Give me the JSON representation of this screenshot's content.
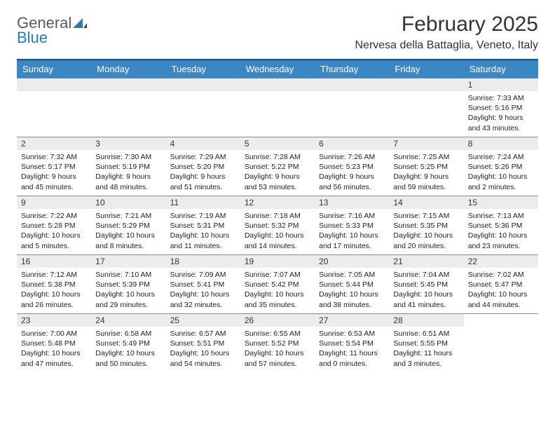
{
  "logo": {
    "general": "General",
    "blue": "Blue"
  },
  "title": "February 2025",
  "location": "Nervesa della Battaglia, Veneto, Italy",
  "colors": {
    "header_bg": "#3b86c5",
    "header_border_top": "#1f4e79",
    "daynum_bg": "#ececec",
    "cell_border": "#888888",
    "text": "#222222",
    "logo_gray": "#5a5a5a",
    "logo_blue": "#2a7ab9"
  },
  "weekdays": [
    "Sunday",
    "Monday",
    "Tuesday",
    "Wednesday",
    "Thursday",
    "Friday",
    "Saturday"
  ],
  "weeks": [
    [
      null,
      null,
      null,
      null,
      null,
      null,
      {
        "n": "1",
        "sr": "Sunrise: 7:33 AM",
        "ss": "Sunset: 5:16 PM",
        "dl1": "Daylight: 9 hours",
        "dl2": "and 43 minutes."
      }
    ],
    [
      {
        "n": "2",
        "sr": "Sunrise: 7:32 AM",
        "ss": "Sunset: 5:17 PM",
        "dl1": "Daylight: 9 hours",
        "dl2": "and 45 minutes."
      },
      {
        "n": "3",
        "sr": "Sunrise: 7:30 AM",
        "ss": "Sunset: 5:19 PM",
        "dl1": "Daylight: 9 hours",
        "dl2": "and 48 minutes."
      },
      {
        "n": "4",
        "sr": "Sunrise: 7:29 AM",
        "ss": "Sunset: 5:20 PM",
        "dl1": "Daylight: 9 hours",
        "dl2": "and 51 minutes."
      },
      {
        "n": "5",
        "sr": "Sunrise: 7:28 AM",
        "ss": "Sunset: 5:22 PM",
        "dl1": "Daylight: 9 hours",
        "dl2": "and 53 minutes."
      },
      {
        "n": "6",
        "sr": "Sunrise: 7:26 AM",
        "ss": "Sunset: 5:23 PM",
        "dl1": "Daylight: 9 hours",
        "dl2": "and 56 minutes."
      },
      {
        "n": "7",
        "sr": "Sunrise: 7:25 AM",
        "ss": "Sunset: 5:25 PM",
        "dl1": "Daylight: 9 hours",
        "dl2": "and 59 minutes."
      },
      {
        "n": "8",
        "sr": "Sunrise: 7:24 AM",
        "ss": "Sunset: 5:26 PM",
        "dl1": "Daylight: 10 hours",
        "dl2": "and 2 minutes."
      }
    ],
    [
      {
        "n": "9",
        "sr": "Sunrise: 7:22 AM",
        "ss": "Sunset: 5:28 PM",
        "dl1": "Daylight: 10 hours",
        "dl2": "and 5 minutes."
      },
      {
        "n": "10",
        "sr": "Sunrise: 7:21 AM",
        "ss": "Sunset: 5:29 PM",
        "dl1": "Daylight: 10 hours",
        "dl2": "and 8 minutes."
      },
      {
        "n": "11",
        "sr": "Sunrise: 7:19 AM",
        "ss": "Sunset: 5:31 PM",
        "dl1": "Daylight: 10 hours",
        "dl2": "and 11 minutes."
      },
      {
        "n": "12",
        "sr": "Sunrise: 7:18 AM",
        "ss": "Sunset: 5:32 PM",
        "dl1": "Daylight: 10 hours",
        "dl2": "and 14 minutes."
      },
      {
        "n": "13",
        "sr": "Sunrise: 7:16 AM",
        "ss": "Sunset: 5:33 PM",
        "dl1": "Daylight: 10 hours",
        "dl2": "and 17 minutes."
      },
      {
        "n": "14",
        "sr": "Sunrise: 7:15 AM",
        "ss": "Sunset: 5:35 PM",
        "dl1": "Daylight: 10 hours",
        "dl2": "and 20 minutes."
      },
      {
        "n": "15",
        "sr": "Sunrise: 7:13 AM",
        "ss": "Sunset: 5:36 PM",
        "dl1": "Daylight: 10 hours",
        "dl2": "and 23 minutes."
      }
    ],
    [
      {
        "n": "16",
        "sr": "Sunrise: 7:12 AM",
        "ss": "Sunset: 5:38 PM",
        "dl1": "Daylight: 10 hours",
        "dl2": "and 26 minutes."
      },
      {
        "n": "17",
        "sr": "Sunrise: 7:10 AM",
        "ss": "Sunset: 5:39 PM",
        "dl1": "Daylight: 10 hours",
        "dl2": "and 29 minutes."
      },
      {
        "n": "18",
        "sr": "Sunrise: 7:09 AM",
        "ss": "Sunset: 5:41 PM",
        "dl1": "Daylight: 10 hours",
        "dl2": "and 32 minutes."
      },
      {
        "n": "19",
        "sr": "Sunrise: 7:07 AM",
        "ss": "Sunset: 5:42 PM",
        "dl1": "Daylight: 10 hours",
        "dl2": "and 35 minutes."
      },
      {
        "n": "20",
        "sr": "Sunrise: 7:05 AM",
        "ss": "Sunset: 5:44 PM",
        "dl1": "Daylight: 10 hours",
        "dl2": "and 38 minutes."
      },
      {
        "n": "21",
        "sr": "Sunrise: 7:04 AM",
        "ss": "Sunset: 5:45 PM",
        "dl1": "Daylight: 10 hours",
        "dl2": "and 41 minutes."
      },
      {
        "n": "22",
        "sr": "Sunrise: 7:02 AM",
        "ss": "Sunset: 5:47 PM",
        "dl1": "Daylight: 10 hours",
        "dl2": "and 44 minutes."
      }
    ],
    [
      {
        "n": "23",
        "sr": "Sunrise: 7:00 AM",
        "ss": "Sunset: 5:48 PM",
        "dl1": "Daylight: 10 hours",
        "dl2": "and 47 minutes."
      },
      {
        "n": "24",
        "sr": "Sunrise: 6:58 AM",
        "ss": "Sunset: 5:49 PM",
        "dl1": "Daylight: 10 hours",
        "dl2": "and 50 minutes."
      },
      {
        "n": "25",
        "sr": "Sunrise: 6:57 AM",
        "ss": "Sunset: 5:51 PM",
        "dl1": "Daylight: 10 hours",
        "dl2": "and 54 minutes."
      },
      {
        "n": "26",
        "sr": "Sunrise: 6:55 AM",
        "ss": "Sunset: 5:52 PM",
        "dl1": "Daylight: 10 hours",
        "dl2": "and 57 minutes."
      },
      {
        "n": "27",
        "sr": "Sunrise: 6:53 AM",
        "ss": "Sunset: 5:54 PM",
        "dl1": "Daylight: 11 hours",
        "dl2": "and 0 minutes."
      },
      {
        "n": "28",
        "sr": "Sunrise: 6:51 AM",
        "ss": "Sunset: 5:55 PM",
        "dl1": "Daylight: 11 hours",
        "dl2": "and 3 minutes."
      },
      null
    ]
  ]
}
